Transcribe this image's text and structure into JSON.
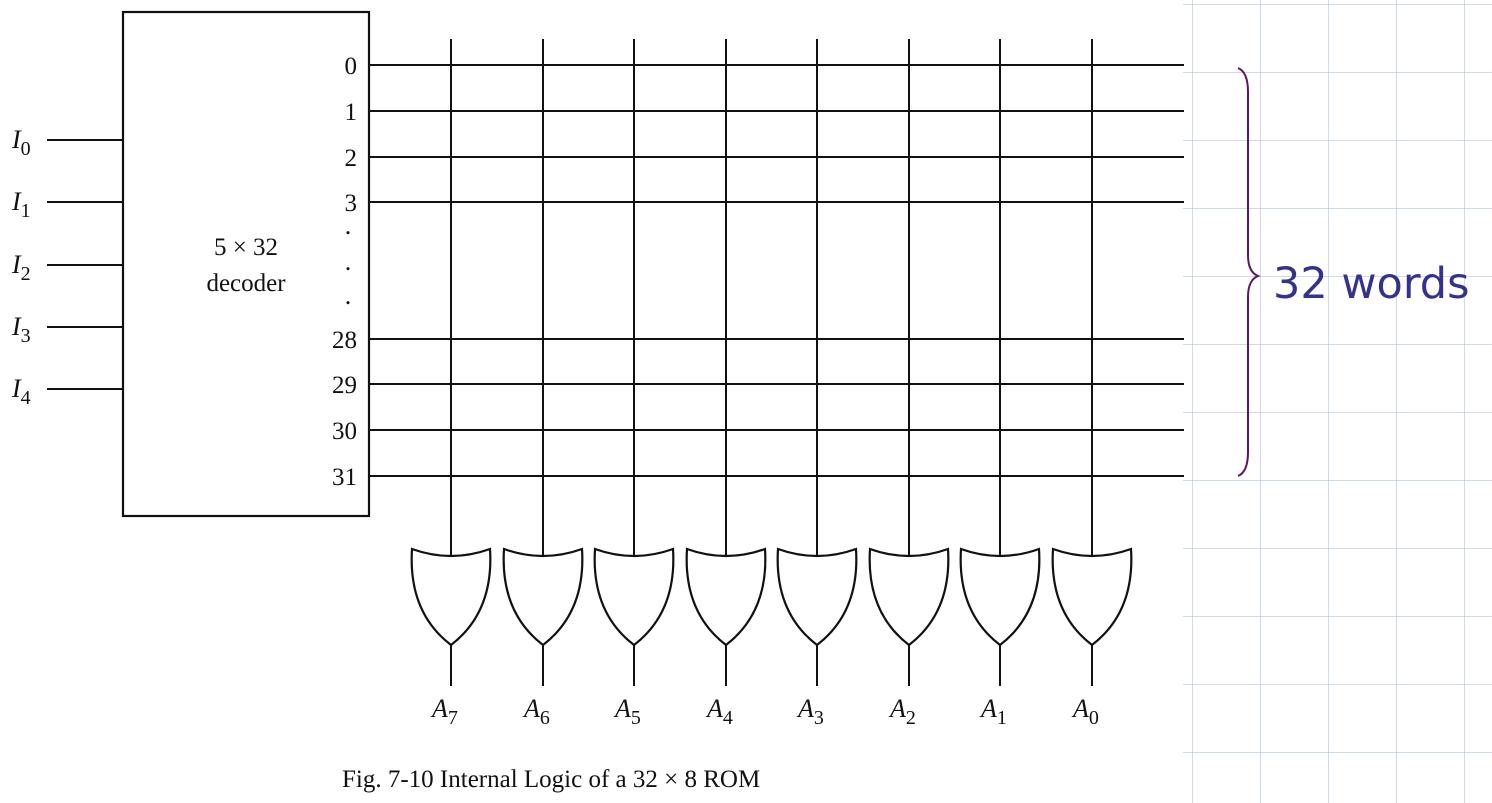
{
  "inputs": [
    {
      "letter": "I",
      "sub": "0"
    },
    {
      "letter": "I",
      "sub": "1"
    },
    {
      "letter": "I",
      "sub": "2"
    },
    {
      "letter": "I",
      "sub": "3"
    },
    {
      "letter": "I",
      "sub": "4"
    }
  ],
  "decoder": {
    "line1": "5 × 32",
    "line2": "decoder"
  },
  "word_lines_top": [
    "0",
    "1",
    "2",
    "3"
  ],
  "ellipsis_dots": [
    ".",
    ".",
    "."
  ],
  "word_lines_bottom": [
    "28",
    "29",
    "30",
    "31"
  ],
  "outputs": [
    {
      "letter": "A",
      "sub": "7"
    },
    {
      "letter": "A",
      "sub": "6"
    },
    {
      "letter": "A",
      "sub": "5"
    },
    {
      "letter": "A",
      "sub": "4"
    },
    {
      "letter": "A",
      "sub": "3"
    },
    {
      "letter": "A",
      "sub": "2"
    },
    {
      "letter": "A",
      "sub": "1"
    },
    {
      "letter": "A",
      "sub": "0"
    }
  ],
  "brace_label": "32 words",
  "caption": "Fig. 7-10  Internal Logic of a 32 × 8 ROM",
  "colors": {
    "brace": "#5a1460",
    "label": "#33338f"
  }
}
